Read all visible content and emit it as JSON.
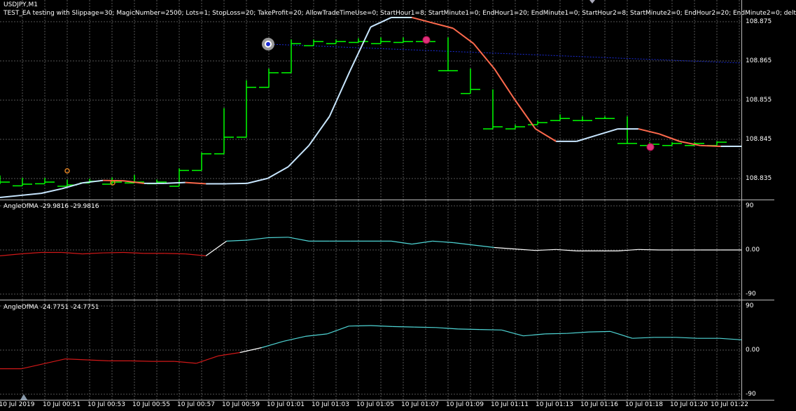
{
  "main": {
    "symbol": "USDJPY,M1",
    "ea_title": "TEST_EA testing with Slippage=30; MagicNumber=2500; Lots=1; StopLoss=20; TakeProfit=20; AllowTradeTimeUse=0; StartHour1=8; StartMinute1=0; EndHour1=20; EndMinute1=0; StartHour2=8; StartMinute2=0; EndHour2=20; EndMinute2=0; delt",
    "price_labels": [
      "108.875",
      "108.865",
      "108.855",
      "108.845",
      "108.835"
    ]
  },
  "indicator1": {
    "title": "AngleOfMA -29.9816 -29.9816",
    "scale_labels": [
      "90",
      "0.00",
      "-90"
    ]
  },
  "indicator2": {
    "title": "AngleOfMA -24.7751 -24.7751",
    "scale_labels": [
      "90",
      "0.00",
      "-90"
    ]
  },
  "time_axis": {
    "labels": [
      "10 Jul 2019",
      "10 Jul 00:51",
      "10 Jul 00:53",
      "10 Jul 00:55",
      "10 Jul 00:57",
      "10 Jul 00:59",
      "10 Jul 01:01",
      "10 Jul 01:03",
      "10 Jul 01:05",
      "10 Jul 01:07",
      "10 Jul 01:09",
      "10 Jul 01:11",
      "10 Jul 01:13",
      "10 Jul 01:16",
      "10 Jul 01:18",
      "10 Jul 01:20",
      "10 Jul 01:22"
    ]
  },
  "colors": {
    "bars": "#00ff00",
    "ma_up": "#c8e6ff",
    "ma_down": "#ff6a4d",
    "angle_up": "#4fd6d6",
    "angle_down": "#d01818",
    "angle_flat": "#ffffff",
    "grid": "#555555",
    "trend_line": "#1a2bd6"
  },
  "chart_data": {
    "type": "line",
    "title": "USDJPY,M1",
    "price_range": [
      108.831,
      108.879
    ],
    "bars": [
      [
        108.8347,
        108.8368,
        108.8352
      ],
      [
        108.8343,
        108.8362,
        108.8347
      ],
      [
        108.8348,
        108.8362,
        108.8352
      ],
      [
        108.8342,
        108.8358,
        108.8345
      ],
      [
        108.835,
        108.836,
        108.8354
      ],
      [
        108.8347,
        108.8363,
        108.8352
      ],
      [
        108.835,
        108.8369,
        108.8352
      ],
      [
        108.8348,
        108.8358,
        108.8352
      ],
      [
        108.8342,
        108.8385,
        108.838
      ],
      [
        108.838,
        108.8423,
        108.842
      ],
      [
        108.842,
        108.853,
        108.846
      ],
      [
        108.846,
        108.8597,
        108.858
      ],
      [
        108.858,
        108.8625,
        108.8615
      ],
      [
        108.8615,
        108.8695,
        108.8685
      ],
      [
        108.868,
        108.8695,
        108.869
      ],
      [
        108.8685,
        108.8695,
        108.869
      ],
      [
        108.8688,
        108.8698,
        108.869
      ],
      [
        108.8685,
        108.87,
        108.869
      ],
      [
        108.8688,
        108.87,
        108.869
      ],
      [
        108.869,
        108.87,
        108.869
      ],
      [
        108.862,
        108.87,
        108.862
      ],
      [
        108.8565,
        108.8625,
        108.8575
      ],
      [
        108.848,
        108.8575,
        108.8485
      ],
      [
        108.848,
        108.849,
        108.8485
      ],
      [
        108.849,
        108.85,
        108.8495
      ],
      [
        108.85,
        108.8515,
        108.8505
      ],
      [
        108.85,
        108.851,
        108.85
      ],
      [
        108.8505,
        108.851,
        108.8505
      ],
      [
        108.8445,
        108.851,
        108.8445
      ],
      [
        108.844,
        108.8448,
        108.8443
      ],
      [
        108.844,
        108.8448,
        108.8445
      ],
      [
        108.844,
        108.8448,
        108.8445
      ],
      [
        108.844,
        108.845,
        108.8448
      ]
    ],
    "ma": [
      108.8315,
      108.832,
      108.8325,
      108.8336,
      108.835,
      108.8356,
      108.8355,
      108.8349,
      108.8349,
      108.8351,
      108.8348,
      108.8348,
      108.8349,
      108.8361,
      108.8389,
      108.844,
      108.851,
      108.862,
      108.8725,
      108.8748,
      108.8748,
      108.8735,
      108.8722,
      108.8685,
      108.8625,
      108.855,
      108.848,
      108.845,
      108.845,
      108.8465,
      108.848,
      108.848,
      108.8468,
      108.845,
      108.844,
      108.8438,
      108.8438
    ],
    "angle1": [
      -12,
      -8,
      -5,
      -5,
      -8,
      -6,
      -5,
      -7,
      -7,
      -8,
      -12,
      18,
      20,
      25,
      26,
      18,
      18,
      18,
      18,
      18,
      12,
      18,
      15,
      10,
      5,
      2,
      -1,
      1,
      -2,
      -2,
      -2,
      1,
      0,
      0,
      0,
      0,
      0
    ],
    "angle2": [
      -38,
      -38,
      -28,
      -18,
      -20,
      -22,
      -22,
      -23,
      -23,
      -27,
      -12,
      -5,
      5,
      18,
      28,
      33,
      49,
      50,
      48,
      47,
      46,
      43,
      42,
      41,
      29,
      33,
      34,
      37,
      38,
      24,
      26,
      26,
      24,
      24,
      21
    ],
    "angle_range": [
      -90,
      90
    ]
  }
}
